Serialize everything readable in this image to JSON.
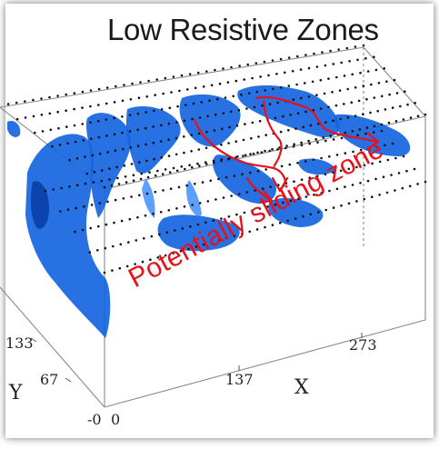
{
  "title": "Low Resistive Zones",
  "annotation": "Potentially sliding zone",
  "axes": {
    "x_label": "X",
    "y_label": "Y",
    "x_ticks": [
      "0",
      "137",
      "273"
    ],
    "y_ticks": [
      "-0",
      "67",
      "133"
    ]
  },
  "colors": {
    "body": "#1565e0",
    "body_light": "#4f97ff",
    "body_dark": "#0a3fa8",
    "annotation": "#e8111a",
    "electrode": "#111111",
    "box_edge": "#8a8a8a"
  }
}
